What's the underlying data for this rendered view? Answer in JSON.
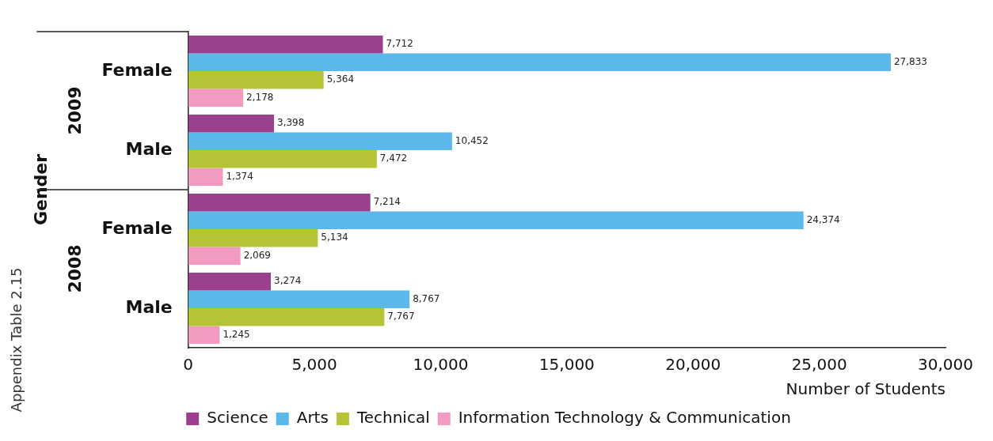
{
  "chart_data": {
    "type": "bar",
    "orientation": "horizontal",
    "ylabel": "Gender",
    "xlabel": "Number of Students",
    "categories": [
      "Female",
      "Male",
      "Female",
      "Male"
    ],
    "series": [
      {
        "name": "Science",
        "color": "#9b3f8f",
        "values": [
          7712,
          3398,
          7214,
          3274
        ],
        "value_labels": [
          "7,712",
          "3,398",
          "7,214",
          "3,274"
        ]
      },
      {
        "name": "Arts",
        "color": "#5bb8e8",
        "values": [
          27833,
          10452,
          24374,
          8767
        ],
        "value_labels": [
          "27,833",
          "10,452",
          "24,374",
          "8,767"
        ]
      },
      {
        "name": "Technical",
        "color": "#b5c334",
        "values": [
          5364,
          7472,
          5134,
          7767
        ],
        "value_labels": [
          "5,364",
          "7,472",
          "5,134",
          "7,767"
        ]
      },
      {
        "name": "Information Technology & Communication",
        "color": "#f29ac0",
        "values": [
          2178,
          1374,
          2069,
          1245
        ],
        "value_labels": [
          "2,178",
          "1,374",
          "2,069",
          "1,245"
        ]
      }
    ],
    "xlim": [
      0,
      30000
    ],
    "xticks": [
      0,
      {
        "value": 5000,
        "label": "5,000"
      },
      {
        "value": 10000,
        "label": "10,000"
      },
      {
        "value": 15000,
        "label": "15,000"
      },
      {
        "value": 20000,
        "label": "20,000"
      },
      {
        "value": 25000,
        "label": "25,000"
      },
      {
        "value": 30000,
        "label": "30,000"
      }
    ],
    "grid": false,
    "legend": "bottom",
    "annotations": [
      "2009",
      "2008",
      "Appendix Table 2.15"
    ]
  }
}
